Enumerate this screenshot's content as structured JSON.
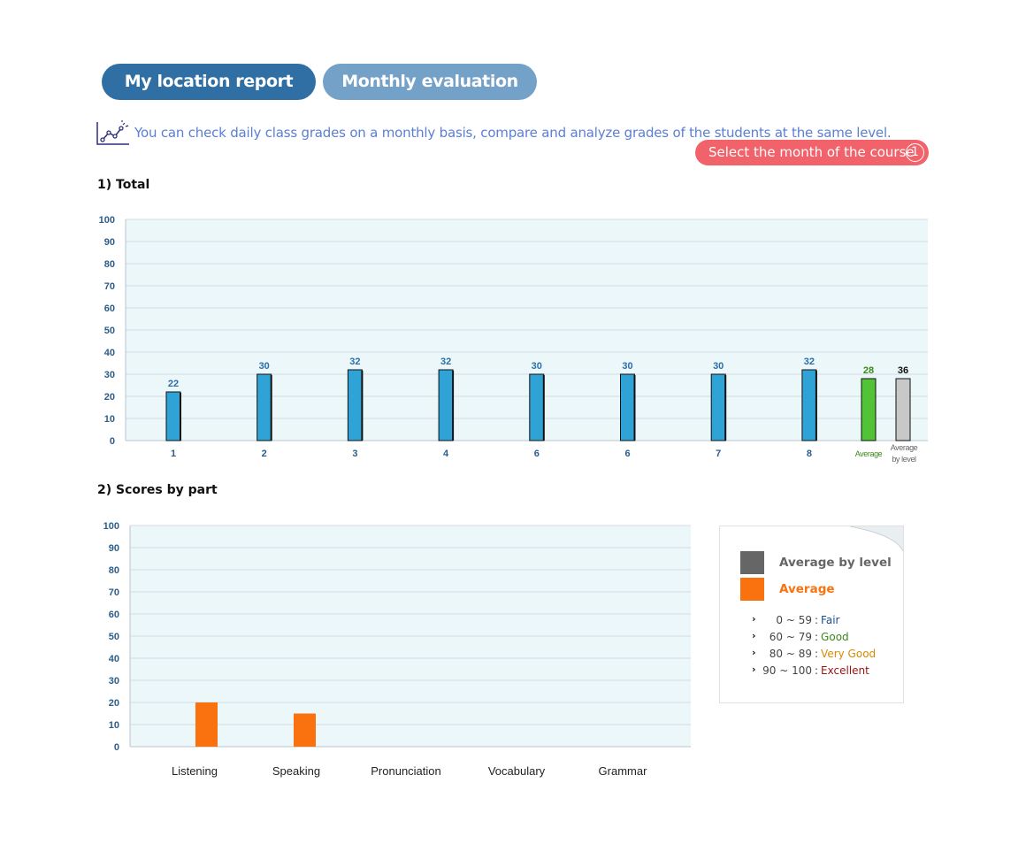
{
  "tabs": {
    "report_card": "My location report card",
    "monthly": "Monthly evaluation"
  },
  "info_text": "You can check daily class grades on a monthly basis, compare and analyze grades of the students at the same level.",
  "month_button": {
    "label": "Select the month of the course",
    "number": "1"
  },
  "sections": {
    "total": "1) Total",
    "parts": "2) Scores by part"
  },
  "colors": {
    "class_bar": "#2fa3d6",
    "average_bar": "#52c236",
    "level_bar": "#c8c8c8",
    "part_average": "#fa720f",
    "part_level": "#666666",
    "plot_bg": "#ecf7f9"
  },
  "chart_data": [
    {
      "type": "bar",
      "ylim": [
        0,
        100
      ],
      "yticks": [
        0,
        10,
        20,
        30,
        40,
        50,
        60,
        70,
        80,
        90,
        100
      ],
      "categories": [
        "1",
        "2",
        "3",
        "4",
        "6",
        "6",
        "7",
        "8"
      ],
      "values": [
        22,
        30,
        32,
        32,
        30,
        30,
        30,
        32
      ],
      "average": {
        "label": "Average",
        "value": 28
      },
      "average_by_level": {
        "label": [
          "Average",
          "by level"
        ],
        "value": 36
      },
      "grid": true
    },
    {
      "type": "bar",
      "ylim": [
        0,
        100
      ],
      "yticks": [
        0,
        10,
        20,
        30,
        40,
        50,
        60,
        70,
        80,
        90,
        100
      ],
      "categories": [
        "Listening",
        "Speaking",
        "Pronunciation",
        "Vocabulary",
        "Grammar"
      ],
      "series": [
        {
          "name": "Average",
          "values": [
            20,
            15,
            0,
            0,
            0
          ]
        }
      ],
      "grid": true
    }
  ],
  "legend": {
    "average_by_level": "Average by level",
    "average": "Average",
    "ranges": [
      {
        "range": "0 ~  59",
        "label": "Fair",
        "color": "#1a4f8c"
      },
      {
        "range": "60 ~  79",
        "label": "Good",
        "color": "#3a8a1a"
      },
      {
        "range": "80 ~  89",
        "label": "Very Good",
        "color": "#d98a00"
      },
      {
        "range": "90 ~ 100",
        "label": "Excellent",
        "color": "#9a1212"
      }
    ]
  }
}
